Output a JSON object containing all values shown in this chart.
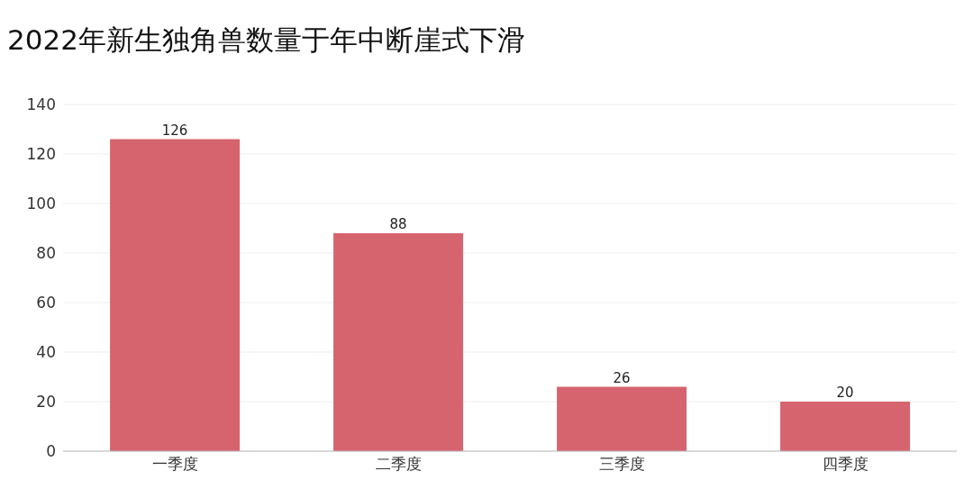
{
  "chart_data": {
    "type": "bar",
    "title": "2022年新生独角兽数量于年中断崖式下滑",
    "categories": [
      "一季度",
      "二季度",
      "三季度",
      "四季度"
    ],
    "values": [
      126,
      88,
      26,
      20
    ],
    "color": "#d6646e",
    "ylim": [
      0,
      140
    ],
    "yticks": [
      0,
      20,
      40,
      60,
      80,
      100,
      120,
      140
    ],
    "grid": "y",
    "data_labels": true
  }
}
